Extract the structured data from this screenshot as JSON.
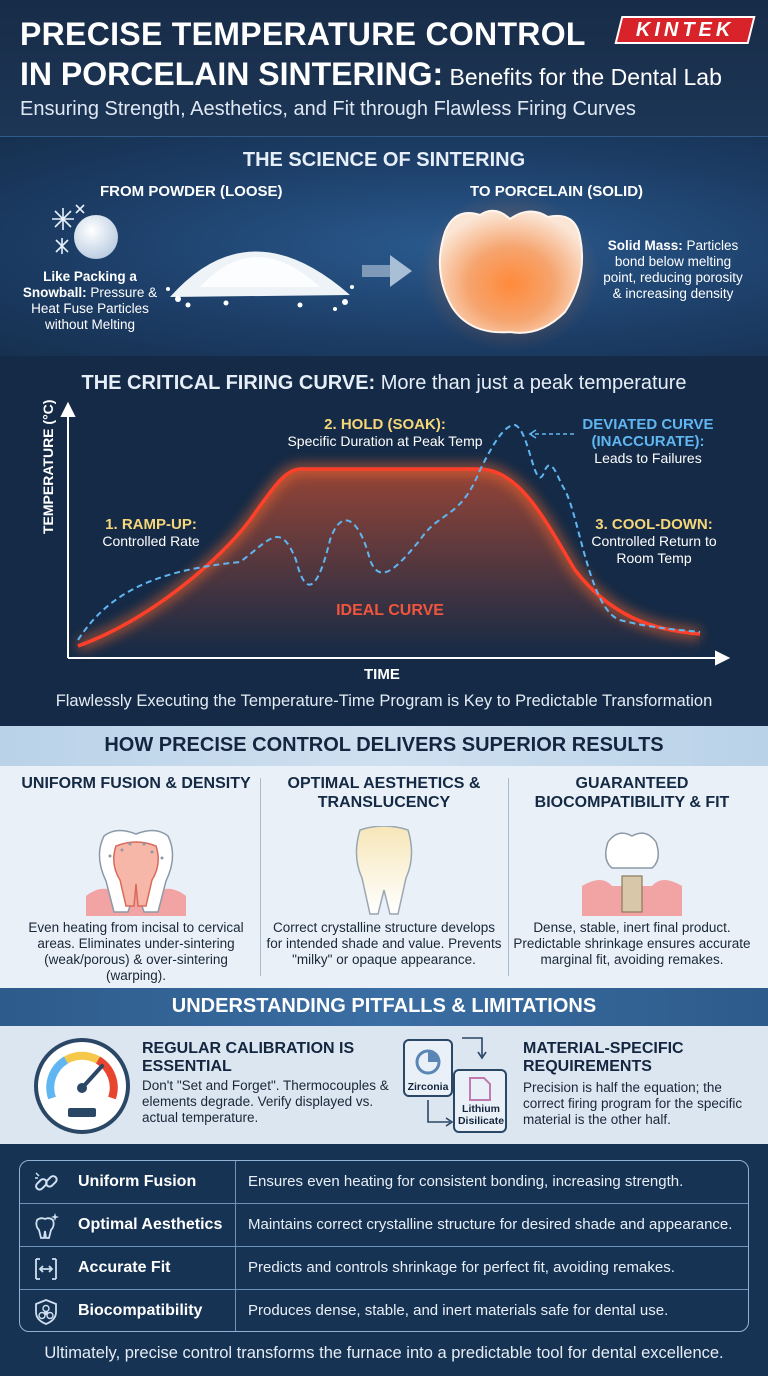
{
  "header": {
    "title_line1": "PRECISE TEMPERATURE CONTROL",
    "title_line2_bold": "IN PORCELAIN SINTERING:",
    "title_line2_light": " Benefits for the Dental Lab",
    "subtitle": "Ensuring Strength, Aesthetics, and Fit through Flawless Firing Curves",
    "logo": "KINTEK"
  },
  "science": {
    "title": "THE SCIENCE OF SINTERING",
    "from_label": "FROM POWDER (LOOSE)",
    "to_label": "TO PORCELAIN (SOLID)",
    "snow_bold": "Like Packing a Snowball:",
    "snow_text": " Pressure & Heat Fuse Particles without Melting",
    "solid_bold": "Solid Mass:",
    "solid_text": " Particles bond below melting point, reducing porosity & increasing density"
  },
  "firing": {
    "title_bold": "THE CRITICAL FIRING CURVE:",
    "title_light": " More than just a peak temperature",
    "ylabel": "TEMPERATURE (°C)",
    "xlabel": "TIME",
    "hold_head": "2. HOLD (SOAK):",
    "hold_text": "Specific Duration at Peak Temp",
    "ramp_head": "1. RAMP-UP:",
    "ramp_text": "Controlled Rate",
    "cool_head": "3. COOL-DOWN:",
    "cool_text": "Controlled Return to Room Temp",
    "dev_head": "DEVIATED CURVE (INACCURATE):",
    "dev_text": "Leads to Failures",
    "ideal_label": "IDEAL CURVE",
    "footer": "Flawlessly Executing the Temperature-Time Program is Key to Predictable Transformation"
  },
  "results": {
    "title": "HOW PRECISE CONTROL DELIVERS SUPERIOR RESULTS",
    "cols": [
      {
        "head": "UNIFORM FUSION & DENSITY",
        "text": "Even heating from incisal to cervical areas. Eliminates under-sintering (weak/porous) & over-sintering (warping)."
      },
      {
        "head": "OPTIMAL AESTHETICS & TRANSLUCENCY",
        "text": "Correct crystalline structure develops for intended shade and value. Prevents \"milky\" or opaque appearance."
      },
      {
        "head": "GUARANTEED BIOCOMPATIBILITY & FIT",
        "text": "Dense, stable, inert final product. Predictable shrinkage ensures accurate marginal fit, avoiding remakes."
      }
    ]
  },
  "pitfalls": {
    "title": "UNDERSTANDING PITFALLS & LIMITATIONS",
    "cal_head": "REGULAR CALIBRATION IS ESSENTIAL",
    "cal_text": "Don't \"Set and Forget\". Thermocouples & elements degrade. Verify displayed vs. actual temperature.",
    "mat_head": "MATERIAL-SPECIFIC REQUIREMENTS",
    "mat_text": "Precision is half the equation; the correct firing program for the specific material is the other half.",
    "zirconia": "Zirconia",
    "lithium": "Lithium Disilicate"
  },
  "table": {
    "rows": [
      {
        "label": "Uniform Fusion",
        "text": "Ensures even heating for consistent bonding, increasing strength.",
        "icon": "link-icon"
      },
      {
        "label": "Optimal Aesthetics",
        "text": "Maintains correct crystalline structure for desired shade and appearance.",
        "icon": "sparkle-tooth-icon"
      },
      {
        "label": "Accurate Fit",
        "text": "Predicts and controls shrinkage for perfect fit, avoiding remakes.",
        "icon": "measure-icon"
      },
      {
        "label": "Biocompatibility",
        "text": "Produces dense, stable, and inert materials safe for dental use.",
        "icon": "biohazard-shield-icon"
      }
    ]
  },
  "footer": "Ultimately, precise control transforms the furnace into a predictable tool for dental excellence.",
  "colors": {
    "accent_red": "#d8232a",
    "ideal_curve": "#f0553d",
    "deviated_curve": "#5fb6f0",
    "phase_label": "#f5d77a"
  }
}
